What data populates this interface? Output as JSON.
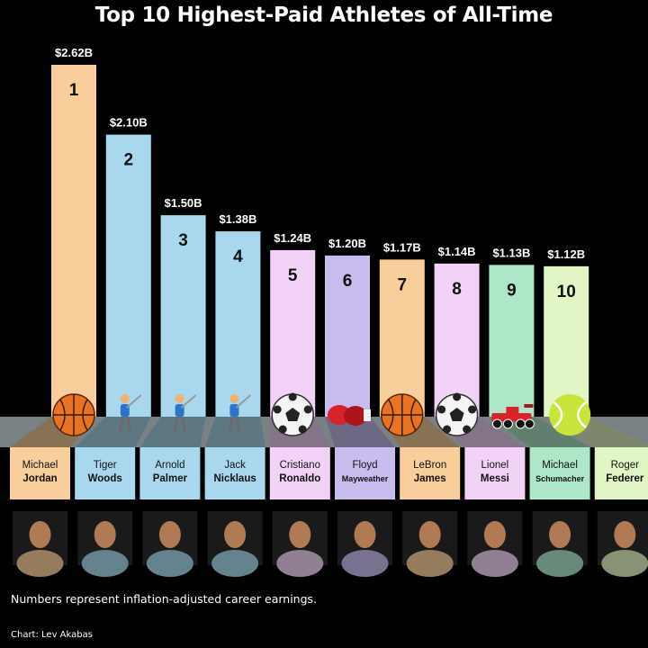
{
  "header": {
    "title": "Top 10 Highest-Paid Athletes of All-Time"
  },
  "footer": {
    "note": "Numbers represent inflation-adjusted career earnings.",
    "credit": "Chart: Lev Akabas"
  },
  "chart_data": {
    "type": "bar",
    "title": "Top 10 Highest-Paid Athletes of All-Time",
    "unit": "B",
    "grid": false,
    "categories": [
      "Michael Jordan",
      "Tiger Woods",
      "Arnold Palmer",
      "Jack Nicklaus",
      "Cristiano Ronaldo",
      "Floyd Mayweather",
      "LeBron James",
      "Lionel Messi",
      "Michael Schumacher",
      "Roger Federer"
    ],
    "values": [
      2.62,
      2.1,
      1.5,
      1.38,
      1.24,
      1.2,
      1.17,
      1.14,
      1.13,
      1.12
    ],
    "bars": [
      {
        "rank": "1",
        "value_label": "$2.62B",
        "first": "Michael",
        "last": "Jordan",
        "sport": "basketball",
        "color": "#f8cf9b",
        "small": false
      },
      {
        "rank": "2",
        "value_label": "$2.10B",
        "first": "Tiger",
        "last": "Woods",
        "sport": "golf",
        "color": "#a9d8ee",
        "small": false
      },
      {
        "rank": "3",
        "value_label": "$1.50B",
        "first": "Arnold",
        "last": "Palmer",
        "sport": "golf",
        "color": "#a9d8ee",
        "small": false
      },
      {
        "rank": "4",
        "value_label": "$1.38B",
        "first": "Jack",
        "last": "Nicklaus",
        "sport": "golf",
        "color": "#a9d8ee",
        "small": false
      },
      {
        "rank": "5",
        "value_label": "$1.24B",
        "first": "Cristiano",
        "last": "Ronaldo",
        "sport": "soccer",
        "color": "#f2d3f7",
        "small": false
      },
      {
        "rank": "6",
        "value_label": "$1.20B",
        "first": "Floyd",
        "last": "Mayweather",
        "sport": "boxing",
        "color": "#c9bdf0",
        "small": true
      },
      {
        "rank": "7",
        "value_label": "$1.17B",
        "first": "LeBron",
        "last": "James",
        "sport": "basketball",
        "color": "#f8cf9b",
        "small": false
      },
      {
        "rank": "8",
        "value_label": "$1.14B",
        "first": "Lionel",
        "last": "Messi",
        "sport": "soccer",
        "color": "#f2d3f7",
        "small": false
      },
      {
        "rank": "9",
        "value_label": "$1.13B",
        "first": "Michael",
        "last": "Schumacher",
        "sport": "racing",
        "color": "#aee6c8",
        "small": true
      },
      {
        "rank": "10",
        "value_label": "$1.12B",
        "first": "Roger",
        "last": "Federer",
        "sport": "tennis",
        "color": "#e2f5c5",
        "small": false
      }
    ]
  }
}
